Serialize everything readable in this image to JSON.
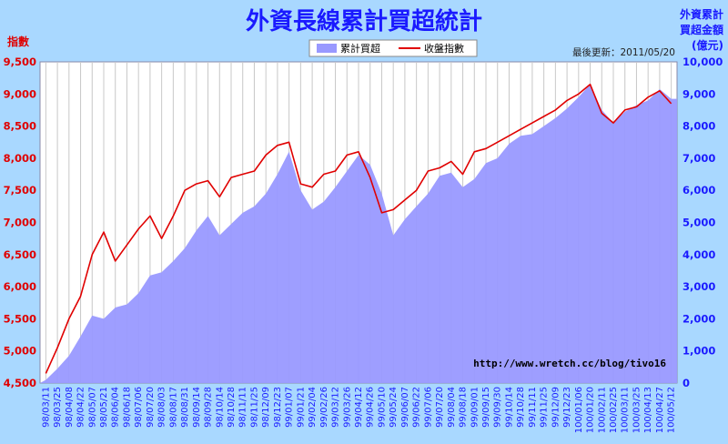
{
  "chart_data": {
    "type": "line",
    "title": "外資長線累計買超統計",
    "y_left_label": "指數",
    "y_right_label": [
      "外資累計",
      "買超金額",
      "(億元)"
    ],
    "update_text": "最後更新：2011/05/20",
    "watermark": "http://www.wretch.cc/blog/tivo16",
    "legend": {
      "position": "top-center",
      "entries": [
        "累計買超",
        "收盤指數"
      ]
    },
    "grid": true,
    "ylim_left": [
      4500,
      9500
    ],
    "ylim_right": [
      0,
      10000
    ],
    "yticks_left": [
      "4,500",
      "5,000",
      "5,500",
      "6,000",
      "6,500",
      "7,000",
      "7,500",
      "8,000",
      "8,500",
      "9,000",
      "9,500"
    ],
    "yticks_right": [
      "0",
      "1,000",
      "2,000",
      "3,000",
      "4,000",
      "5,000",
      "6,000",
      "7,000",
      "8,000",
      "9,000",
      "10,000"
    ],
    "x_ticks": [
      "98/03/11",
      "98/03/25",
      "98/04/08",
      "98/04/22",
      "98/05/07",
      "98/05/21",
      "98/06/04",
      "98/06/18",
      "98/07/06",
      "98/07/20",
      "98/08/03",
      "98/08/17",
      "98/08/31",
      "98/09/14",
      "98/09/28",
      "98/10/14",
      "98/10/28",
      "98/11/11",
      "98/11/25",
      "98/12/09",
      "98/12/23",
      "99/01/07",
      "99/01/21",
      "99/02/04",
      "99/02/26",
      "99/03/12",
      "99/03/26",
      "99/04/12",
      "99/04/26",
      "99/05/10",
      "99/05/24",
      "99/06/07",
      "99/06/22",
      "99/07/06",
      "99/07/20",
      "99/08/04",
      "99/08/18",
      "99/09/01",
      "99/09/15",
      "99/09/30",
      "99/10/14",
      "99/10/28",
      "99/11/11",
      "99/11/25",
      "99/12/09",
      "99/12/23",
      "100/01/06",
      "100/01/20",
      "100/02/11",
      "100/02/25",
      "100/03/11",
      "100/03/25",
      "100/04/13",
      "100/04/27",
      "100/05/12"
    ],
    "series": [
      {
        "name": "累計買超",
        "axis": "right",
        "style": "area",
        "color": "#9999ff",
        "values": [
          100,
          450,
          850,
          1450,
          2100,
          2000,
          2350,
          2450,
          2800,
          3350,
          3450,
          3800,
          4200,
          4750,
          5200,
          4600,
          4950,
          5300,
          5500,
          5900,
          6500,
          7200,
          6000,
          5400,
          5650,
          6100,
          6600,
          7100,
          6800,
          5900,
          4600,
          5100,
          5500,
          5900,
          6450,
          6550,
          6100,
          6350,
          6850,
          7000,
          7450,
          7700,
          7750,
          8000,
          8250,
          8550,
          8900,
          9300,
          8500,
          8100,
          8450,
          8650,
          8800,
          9150,
          8850
        ]
      },
      {
        "name": "收盤指數",
        "axis": "left",
        "style": "line",
        "color": "#e00000",
        "values": [
          4650,
          5050,
          5500,
          5850,
          6500,
          6850,
          6400,
          6650,
          6900,
          7100,
          6750,
          7100,
          7500,
          7600,
          7650,
          7400,
          7700,
          7750,
          7800,
          8050,
          8200,
          8250,
          7600,
          7550,
          7750,
          7800,
          8050,
          8100,
          7700,
          7150,
          7200,
          7350,
          7500,
          7800,
          7850,
          7950,
          7750,
          8100,
          8150,
          8250,
          8350,
          8450,
          8550,
          8650,
          8750,
          8900,
          9000,
          9150,
          8700,
          8550,
          8750,
          8800,
          8950,
          9050,
          8850
        ]
      }
    ]
  }
}
